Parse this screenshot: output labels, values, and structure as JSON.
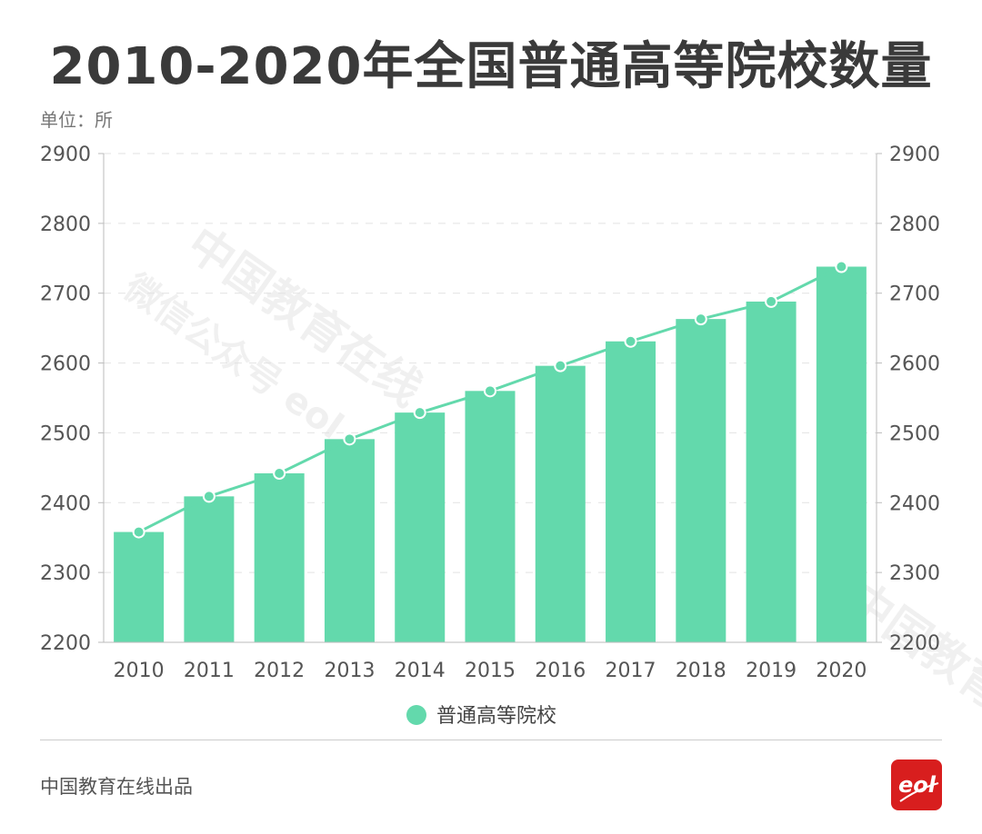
{
  "title": "2010-2020年全国普通高等院校数量",
  "unit_label": "单位：所",
  "credit": "中国教育在线出品",
  "watermark": {
    "line1": "中国教育在线",
    "line2": "微信公众号 eol"
  },
  "logo_text": "eol",
  "colors": {
    "bar": "#63d9ac",
    "line": "#63d9ac",
    "logo": "#d81e1e"
  },
  "chart_data": {
    "type": "bar+line",
    "categories": [
      "2010",
      "2011",
      "2012",
      "2013",
      "2014",
      "2015",
      "2016",
      "2017",
      "2018",
      "2019",
      "2020"
    ],
    "series": [
      {
        "name": "普通高等院校",
        "type": "bar",
        "values": [
          2358,
          2409,
          2442,
          2491,
          2529,
          2560,
          2596,
          2631,
          2663,
          2688,
          2738
        ]
      },
      {
        "type": "line",
        "values": [
          2358,
          2409,
          2442,
          2491,
          2529,
          2560,
          2596,
          2631,
          2663,
          2688,
          2738
        ]
      }
    ],
    "ylim": [
      2200,
      2900
    ],
    "yticks": [
      2200,
      2300,
      2400,
      2500,
      2600,
      2700,
      2800,
      2900
    ],
    "y2ticks": [
      2200,
      2300,
      2400,
      2500,
      2600,
      2700,
      2800,
      2900
    ],
    "grid": true,
    "legend": "bottom-center"
  }
}
